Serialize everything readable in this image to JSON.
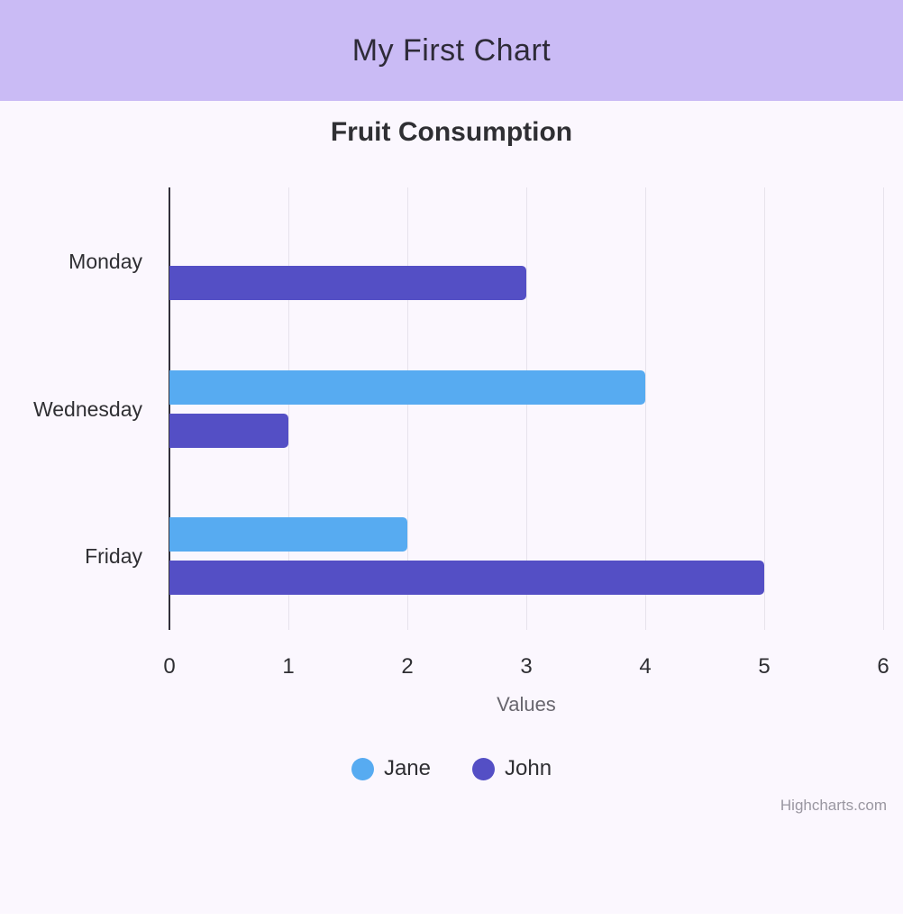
{
  "header": {
    "title": "My First Chart",
    "background_color": "#cabbf5"
  },
  "chart_data": {
    "type": "bar",
    "title": "Fruit Consumption",
    "categories": [
      "Monday",
      "Wednesday",
      "Friday"
    ],
    "series": [
      {
        "name": "Jane",
        "values": [
          0,
          4,
          2
        ],
        "color": "#57abf1"
      },
      {
        "name": "John",
        "values": [
          3,
          1,
          5
        ],
        "color": "#544fc5"
      }
    ],
    "xlabel": "Values",
    "xlim": [
      0,
      6
    ],
    "xticks": [
      0,
      1,
      2,
      3,
      4,
      5,
      6
    ],
    "grid": true,
    "legend_position": "bottom",
    "background_color": "#fbf7fe"
  },
  "credits": {
    "text": "Highcharts.com"
  }
}
